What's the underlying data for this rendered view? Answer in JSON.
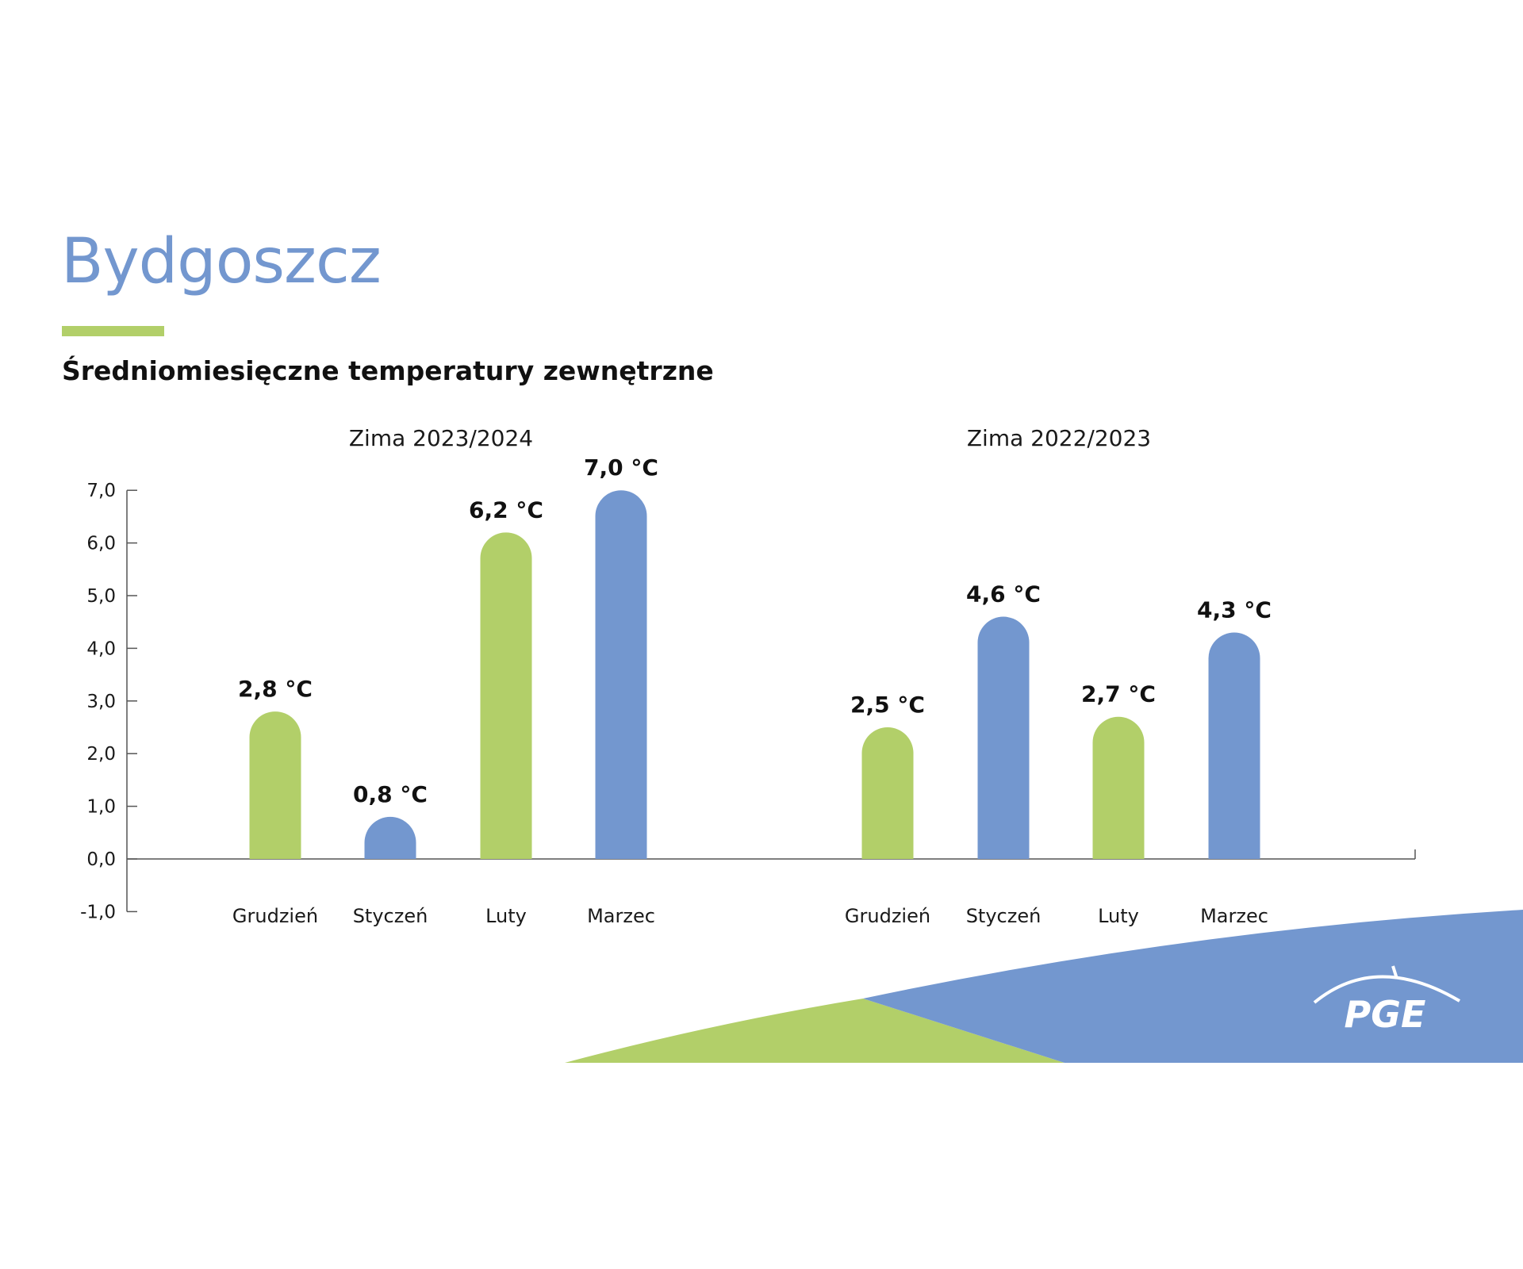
{
  "title": "Bydgoszcz",
  "subtitle": "Średniomiesięczne temperatury zewnętrzne",
  "logo_text": "PGE",
  "colors": {
    "green": "#b2cf69",
    "blue": "#7397cf",
    "axis": "#555555",
    "text": "#111111"
  },
  "chart_data": [
    {
      "type": "bar",
      "title": "Zima 2023/2024",
      "categories": [
        "Grudzień",
        "Styczeń",
        "Luty",
        "Marzec"
      ],
      "values": [
        2.8,
        0.8,
        6.2,
        7.0
      ],
      "data_labels": [
        "2,8 °C",
        "0,8 °C",
        "6,2 °C",
        "7,0 °C"
      ],
      "bar_colors": [
        "green",
        "blue",
        "green",
        "blue"
      ],
      "ylim": [
        -1,
        7
      ],
      "yticks": [
        "-1,0",
        "0,0",
        "1,0",
        "2,0",
        "3,0",
        "4,0",
        "5,0",
        "6,0",
        "7,0"
      ],
      "xlabel": "",
      "ylabel": "",
      "grid": false
    },
    {
      "type": "bar",
      "title": "Zima 2022/2023",
      "categories": [
        "Grudzień",
        "Styczeń",
        "Luty",
        "Marzec"
      ],
      "values": [
        2.5,
        4.6,
        2.7,
        4.3
      ],
      "data_labels": [
        "2,5 °C",
        "4,6 °C",
        "2,7 °C",
        "4,3 °C"
      ],
      "bar_colors": [
        "green",
        "blue",
        "green",
        "blue"
      ],
      "ylim": [
        -1,
        7
      ],
      "xlabel": "",
      "ylabel": "",
      "grid": false
    }
  ]
}
